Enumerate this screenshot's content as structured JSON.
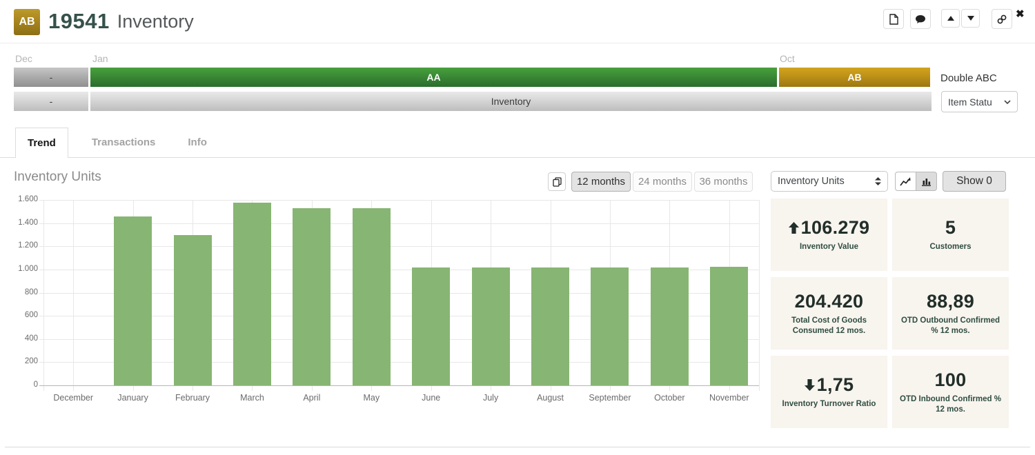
{
  "header": {
    "badge": "AB",
    "item_number": "19541",
    "title": "Inventory"
  },
  "strip": {
    "markers": [
      {
        "label": "Dec"
      },
      {
        "label": "Jan"
      },
      {
        "label": "Oct"
      }
    ],
    "abc_row": {
      "left_segment": "-",
      "primary_segment": "AA",
      "secondary_segment": "AB",
      "row_label": "Double ABC"
    },
    "status_row": {
      "left_segment": "-",
      "primary_segment": "Inventory",
      "select_value": "Item Statu"
    }
  },
  "tabs": {
    "trend": "Trend",
    "transactions": "Transactions",
    "info": "Info"
  },
  "chart_controls": {
    "title": "Inventory Units",
    "range_12": "12 months",
    "range_24": "24 months",
    "range_36": "36 months",
    "metric_select_value": "Inventory Units",
    "show_button": "Show 0"
  },
  "chart_data": {
    "type": "bar",
    "title": "Inventory Units",
    "categories": [
      "December",
      "January",
      "February",
      "March",
      "April",
      "May",
      "June",
      "July",
      "August",
      "September",
      "October",
      "November"
    ],
    "values": [
      0,
      1460,
      1295,
      1575,
      1530,
      1530,
      1020,
      1020,
      1020,
      1020,
      1020,
      1025
    ],
    "ylim": [
      0,
      1600
    ],
    "y_tick_step": 200,
    "y_tick_labels": [
      "0",
      "200",
      "400",
      "600",
      "800",
      "1.000",
      "1.200",
      "1.400",
      "1.600"
    ],
    "grid": true,
    "bar_color": "#87b573",
    "legend_position": "none"
  },
  "kpi": {
    "cards": [
      {
        "value": "106.279",
        "arrow": "up",
        "label": "Inventory Value"
      },
      {
        "value": "5",
        "arrow": "none",
        "label": "Customers"
      },
      {
        "value": "204.420",
        "arrow": "none",
        "label": "Total Cost of Goods Consumed 12 mos."
      },
      {
        "value": "88,89",
        "arrow": "none",
        "label": "OTD Outbound Confirmed % 12 mos."
      },
      {
        "value": "1,75",
        "arrow": "down",
        "label": "Inventory Turnover Ratio"
      },
      {
        "value": "100",
        "arrow": "none",
        "label": "OTD Inbound Confirmed % 12 mos."
      }
    ]
  },
  "colors": {
    "accent_green_dark": "#2a6c2d",
    "accent_green_light": "#48a03d",
    "accent_gold_dark": "#9c7812",
    "accent_gold_light": "#d2a41e",
    "bar_green": "#87b573",
    "brand_text_green": "#35514a",
    "kpi_card_bg": "#f8f4ee",
    "kpi_label_green": "#2f4e42"
  }
}
